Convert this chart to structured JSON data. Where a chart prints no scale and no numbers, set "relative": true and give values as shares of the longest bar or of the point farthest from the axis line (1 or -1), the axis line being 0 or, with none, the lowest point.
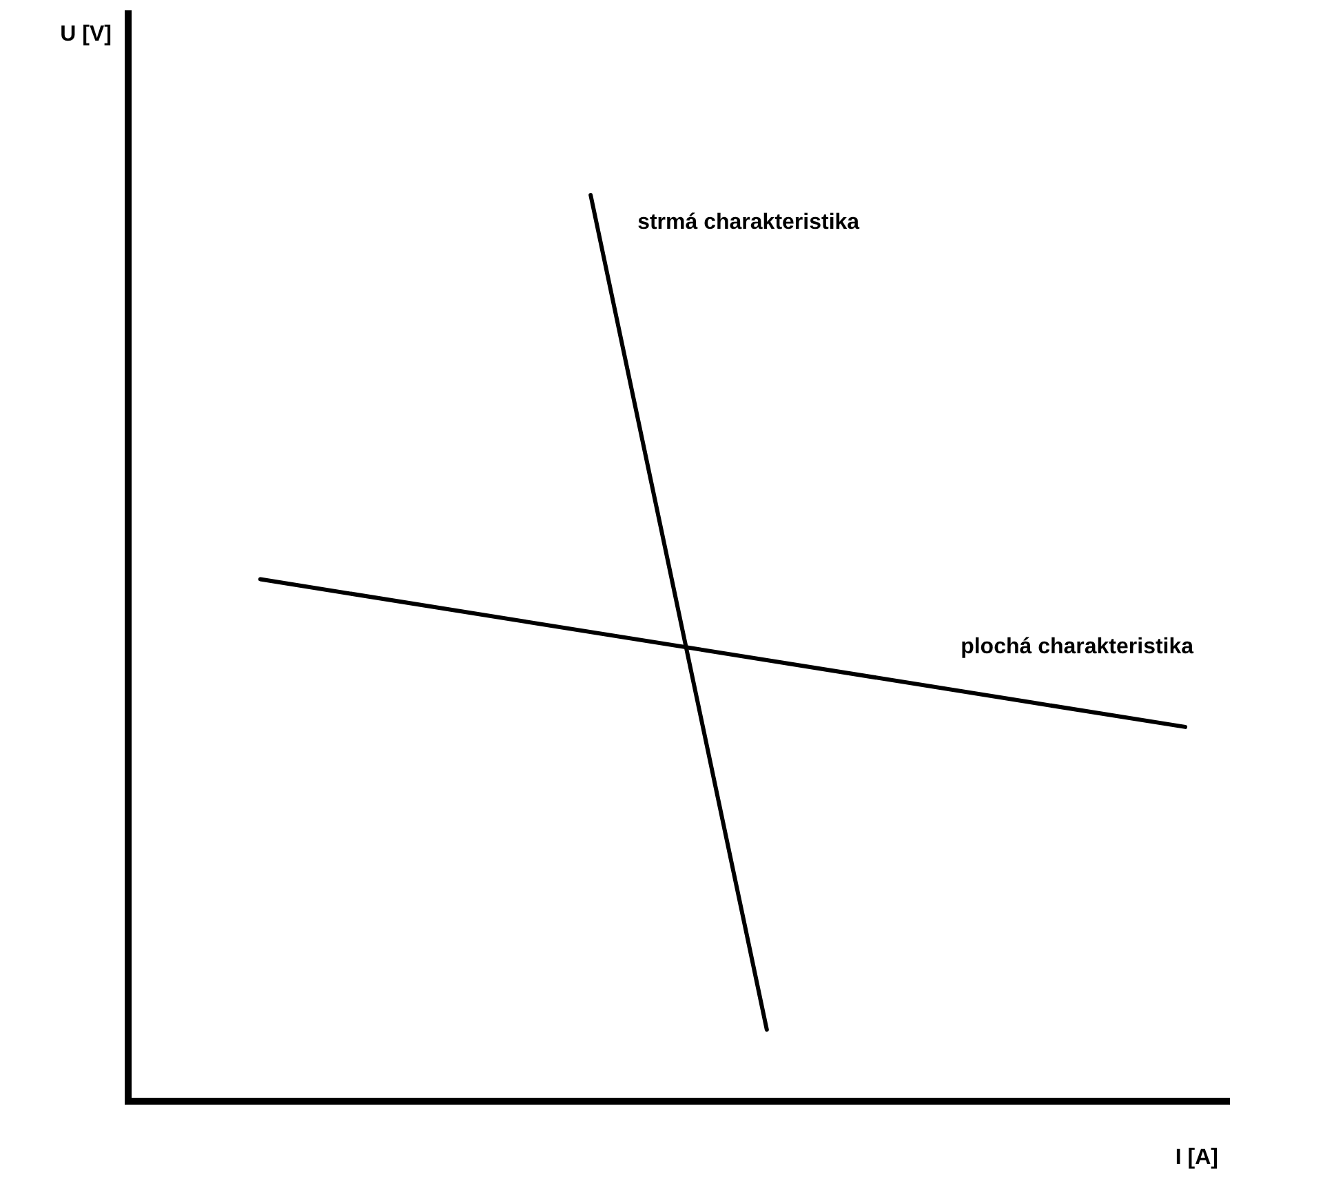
{
  "chart_data": {
    "type": "line",
    "xlabel": "I [A]",
    "annotations": [
      "U [V]"
    ],
    "relative": true,
    "tick_labels": false,
    "grid": false,
    "legend": false,
    "marker": "none",
    "line_style": "solid",
    "categories": [
      null,
      null,
      null,
      null,
      null,
      null,
      null,
      null,
      null,
      null,
      null,
      null,
      null,
      null,
      null,
      null,
      null,
      null,
      null,
      null,
      null,
      null,
      null,
      null,
      null,
      null,
      null,
      null,
      null,
      null,
      null,
      null,
      null,
      null,
      null,
      null,
      null,
      null,
      null,
      null,
      null,
      null,
      null,
      null,
      null,
      null,
      null,
      null,
      null,
      null,
      null
    ],
    "series": [
      {
        "name": "strmá charakteristika",
        "color": "#000000",
        "values": [
          null,
          null,
          null,
          null,
          null,
          null,
          null,
          null,
          null,
          null,
          null,
          null,
          null,
          null,
          null,
          null,
          null,
          null,
          null,
          null,
          null,
          1,
          null,
          null,
          null,
          null,
          null,
          null,
          null,
          0.079,
          null,
          null,
          null,
          null,
          null,
          null,
          null,
          null,
          null,
          null,
          null,
          null,
          null,
          null,
          null,
          null,
          null,
          null,
          null,
          null,
          null
        ]
      },
      {
        "name": "plochá charakteristika",
        "color": "#000000",
        "values": [
          null,
          null,
          null,
          null,
          null,
          null,
          0.576,
          null,
          null,
          null,
          null,
          null,
          null,
          null,
          null,
          null,
          null,
          null,
          null,
          null,
          null,
          null,
          null,
          null,
          null,
          null,
          null,
          null,
          null,
          null,
          null,
          null,
          null,
          null,
          null,
          null,
          null,
          null,
          null,
          null,
          null,
          null,
          null,
          null,
          null,
          null,
          null,
          null,
          0.413,
          null,
          null
        ]
      }
    ]
  }
}
